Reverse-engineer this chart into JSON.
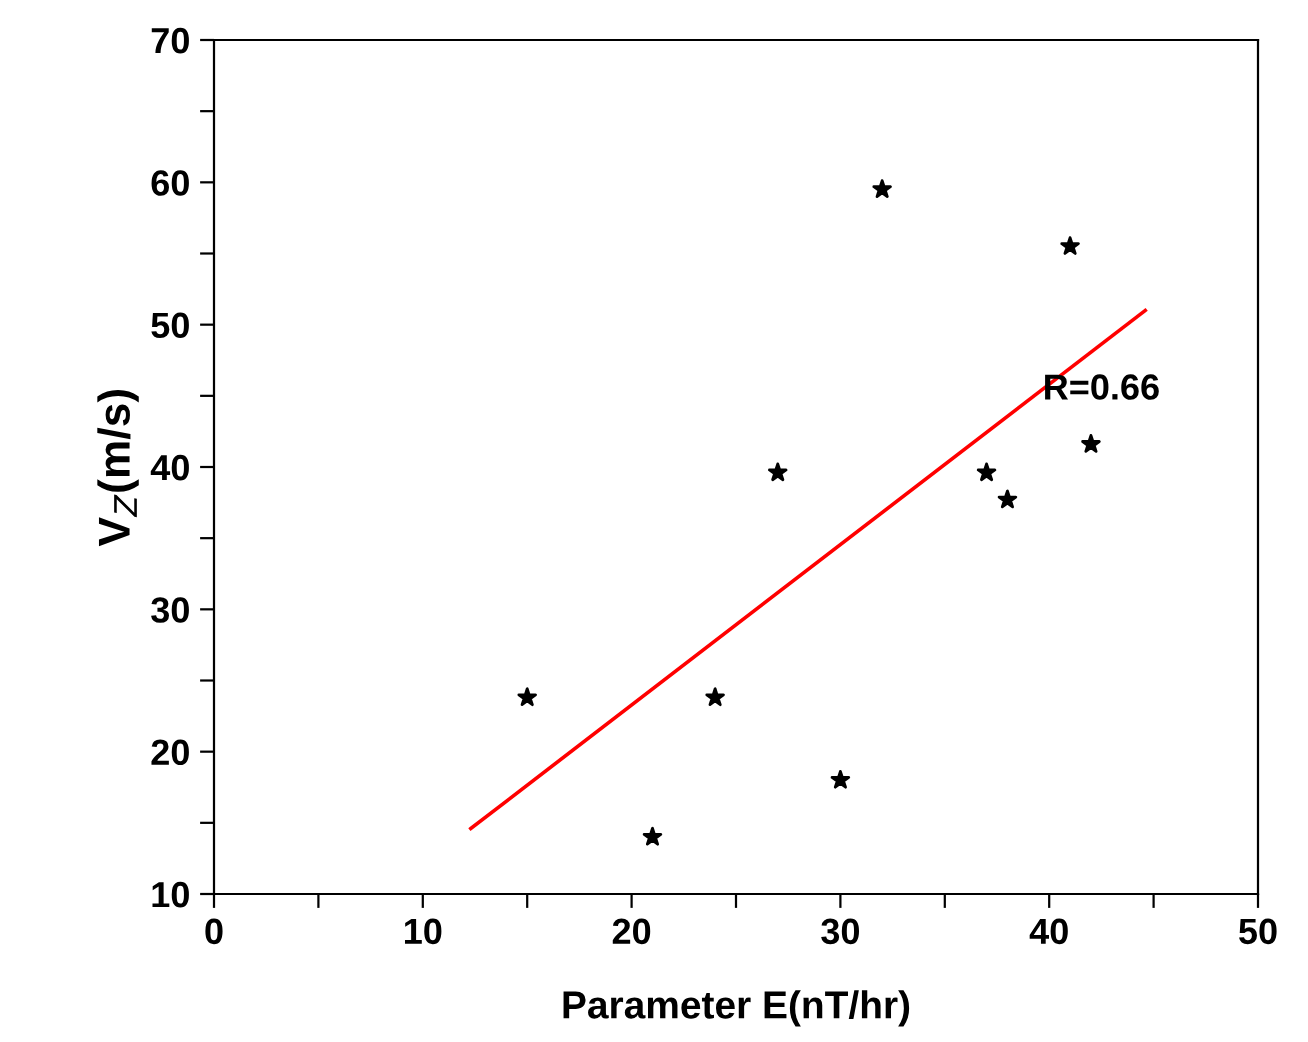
{
  "chart_data": {
    "type": "scatter",
    "xlabel": "Parameter E(nT/hr)",
    "ylabel": "V$_{Z}$(m/s)",
    "series": [
      {
        "color": "#000000",
        "marker": "star",
        "x": [
          15,
          21,
          24,
          27,
          30,
          32,
          37,
          38,
          41,
          42
        ],
        "values": [
          23.8,
          14,
          23.8,
          39.6,
          18,
          59.5,
          39.6,
          37.7,
          55.5,
          41.6
        ]
      },
      {
        "type": "line",
        "color": "#ff0000",
        "marker": "none",
        "x": [
          12.3,
          44.6
        ],
        "values": [
          14.6,
          51
        ]
      }
    ],
    "annotations": [
      "R=0.66"
    ],
    "xlim": [
      0,
      50
    ],
    "ylim": [
      10,
      70
    ],
    "xticks": [
      0,
      {
        "value": 5,
        "label": null
      },
      10,
      {
        "value": 15,
        "label": null
      },
      20,
      {
        "value": 25,
        "label": null
      },
      30,
      {
        "value": 35,
        "label": null
      },
      40,
      {
        "value": 45,
        "label": null
      },
      50
    ],
    "yticks": [
      10,
      {
        "value": 15,
        "label": null
      },
      20,
      {
        "value": 25,
        "label": null
      },
      30,
      {
        "value": 35,
        "label": null
      },
      40,
      {
        "value": 45,
        "label": null
      },
      50,
      {
        "value": 55,
        "label": null
      },
      60,
      {
        "value": 65,
        "label": null
      },
      70
    ],
    "grid": false,
    "legend": false
  }
}
